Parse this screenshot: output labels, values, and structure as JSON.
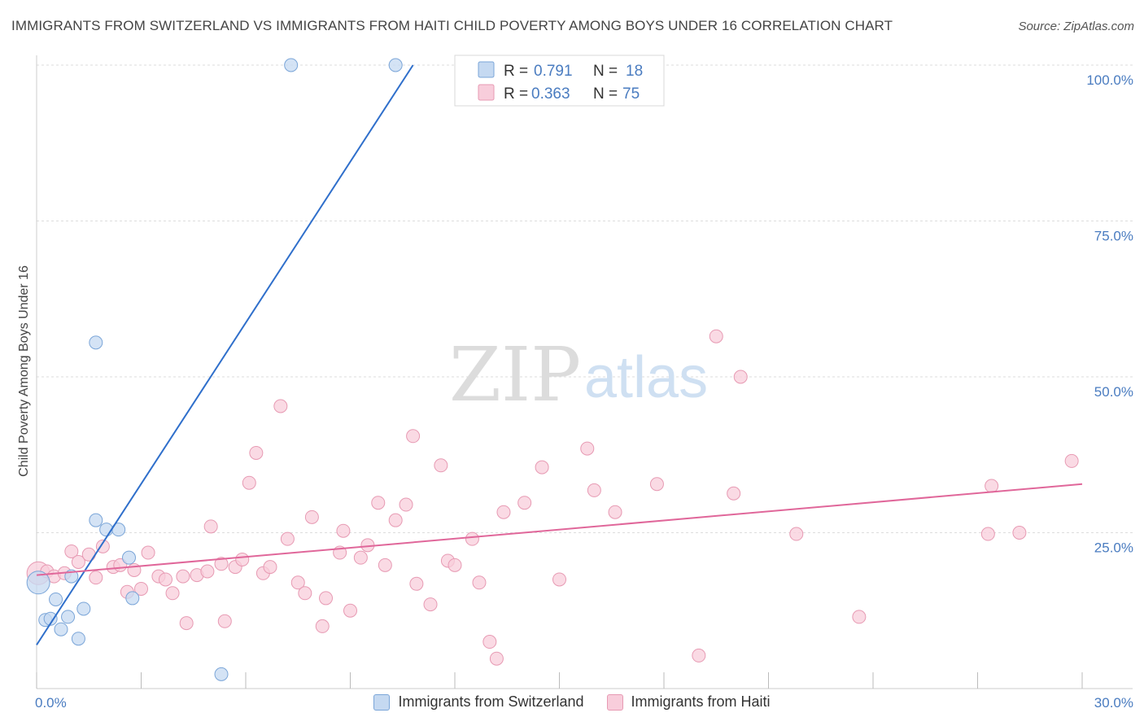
{
  "title": "IMMIGRANTS FROM SWITZERLAND VS IMMIGRANTS FROM HAITI CHILD POVERTY AMONG BOYS UNDER 16 CORRELATION CHART",
  "source": "Source: ZipAtlas.com",
  "watermark": {
    "zip": "ZIP",
    "atlas": "atlas"
  },
  "colors": {
    "blue_fill": "#c5d9f1",
    "blue_stroke": "#7aa5d8",
    "blue_line": "#2f6fcb",
    "pink_fill": "#f8cddb",
    "pink_stroke": "#e79ab3",
    "pink_line": "#e0679a",
    "axis_text": "#4a7cc0",
    "grid": "#dddddd"
  },
  "legend": {
    "rows": [
      {
        "r_label": "R = ",
        "r_value": "0.791",
        "n_label": "N = ",
        "n_value": "18"
      },
      {
        "r_label": "R = ",
        "r_value": "0.363",
        "n_label": "N = ",
        "n_value": "75"
      }
    ]
  },
  "bottom_legend": [
    "Immigrants from Switzerland",
    "Immigrants from Haiti"
  ],
  "chart_data": {
    "type": "scatter",
    "title": "IMMIGRANTS FROM SWITZERLAND VS IMMIGRANTS FROM HAITI CHILD POVERTY AMONG BOYS UNDER 16 CORRELATION CHART",
    "xlabel": "",
    "ylabel": "Child Poverty Among Boys Under 16",
    "xlim": [
      0,
      30
    ],
    "ylim": [
      0,
      100
    ],
    "x_tick_labels": [
      "0.0%",
      "30.0%"
    ],
    "y_ticks": [
      25,
      50,
      75,
      100
    ],
    "y_tick_labels": [
      "25.0%",
      "50.0%",
      "75.0%",
      "100.0%"
    ],
    "series": [
      {
        "name": "Immigrants from Switzerland",
        "r": 0.791,
        "n": 18,
        "trend": {
          "x": [
            0.0,
            10.8
          ],
          "y": [
            7.0,
            100.0
          ]
        },
        "points": [
          [
            0.05,
            17.0
          ],
          [
            0.25,
            11.0
          ],
          [
            0.4,
            11.2
          ],
          [
            0.55,
            14.3
          ],
          [
            0.7,
            9.5
          ],
          [
            0.9,
            11.5
          ],
          [
            1.0,
            18.0
          ],
          [
            1.2,
            8.0
          ],
          [
            1.35,
            12.8
          ],
          [
            1.7,
            55.5
          ],
          [
            1.7,
            27.0
          ],
          [
            2.0,
            25.5
          ],
          [
            2.35,
            25.5
          ],
          [
            2.65,
            21.0
          ],
          [
            2.75,
            14.5
          ],
          [
            5.3,
            2.3
          ],
          [
            7.3,
            100.0
          ],
          [
            10.3,
            100.0
          ]
        ]
      },
      {
        "name": "Immigrants from Haiti",
        "r": 0.363,
        "n": 75,
        "trend": {
          "x": [
            0.0,
            30.0
          ],
          "y": [
            18.2,
            32.8
          ]
        },
        "points": [
          [
            0.05,
            18.5
          ],
          [
            0.3,
            18.8
          ],
          [
            0.5,
            18.0
          ],
          [
            0.8,
            18.5
          ],
          [
            1.0,
            22.0
          ],
          [
            1.2,
            20.3
          ],
          [
            1.5,
            21.5
          ],
          [
            1.7,
            17.8
          ],
          [
            1.9,
            22.8
          ],
          [
            2.2,
            19.5
          ],
          [
            2.4,
            19.8
          ],
          [
            2.6,
            15.5
          ],
          [
            2.8,
            19.0
          ],
          [
            3.0,
            16.0
          ],
          [
            3.2,
            21.8
          ],
          [
            3.5,
            18.0
          ],
          [
            3.7,
            17.5
          ],
          [
            3.9,
            15.3
          ],
          [
            4.2,
            18.0
          ],
          [
            4.3,
            10.5
          ],
          [
            4.6,
            18.2
          ],
          [
            4.9,
            18.8
          ],
          [
            5.0,
            26.0
          ],
          [
            5.3,
            20.0
          ],
          [
            5.4,
            10.8
          ],
          [
            5.7,
            19.5
          ],
          [
            5.9,
            20.7
          ],
          [
            6.1,
            33.0
          ],
          [
            6.3,
            37.8
          ],
          [
            6.5,
            18.5
          ],
          [
            6.7,
            19.5
          ],
          [
            7.0,
            45.3
          ],
          [
            7.2,
            24.0
          ],
          [
            7.5,
            17.0
          ],
          [
            7.7,
            15.3
          ],
          [
            7.9,
            27.5
          ],
          [
            8.2,
            10.0
          ],
          [
            8.3,
            14.5
          ],
          [
            8.7,
            21.8
          ],
          [
            8.8,
            25.3
          ],
          [
            9.0,
            12.5
          ],
          [
            9.3,
            21.0
          ],
          [
            9.5,
            23.0
          ],
          [
            9.8,
            29.8
          ],
          [
            10.0,
            19.8
          ],
          [
            10.3,
            27.0
          ],
          [
            10.6,
            29.5
          ],
          [
            10.8,
            40.5
          ],
          [
            10.9,
            16.8
          ],
          [
            11.3,
            13.5
          ],
          [
            11.6,
            35.8
          ],
          [
            11.8,
            20.5
          ],
          [
            12.0,
            19.8
          ],
          [
            12.5,
            24.0
          ],
          [
            12.7,
            17.0
          ],
          [
            13.0,
            7.5
          ],
          [
            13.2,
            4.8
          ],
          [
            13.4,
            28.3
          ],
          [
            14.0,
            29.8
          ],
          [
            14.5,
            35.5
          ],
          [
            15.0,
            17.5
          ],
          [
            15.8,
            38.5
          ],
          [
            16.0,
            31.8
          ],
          [
            16.6,
            28.3
          ],
          [
            17.8,
            32.8
          ],
          [
            19.0,
            5.3
          ],
          [
            19.5,
            56.5
          ],
          [
            20.0,
            31.3
          ],
          [
            20.2,
            50.0
          ],
          [
            21.8,
            24.8
          ],
          [
            23.6,
            11.5
          ],
          [
            27.3,
            24.8
          ],
          [
            27.4,
            32.5
          ],
          [
            28.2,
            25.0
          ],
          [
            29.7,
            36.5
          ]
        ]
      }
    ]
  }
}
